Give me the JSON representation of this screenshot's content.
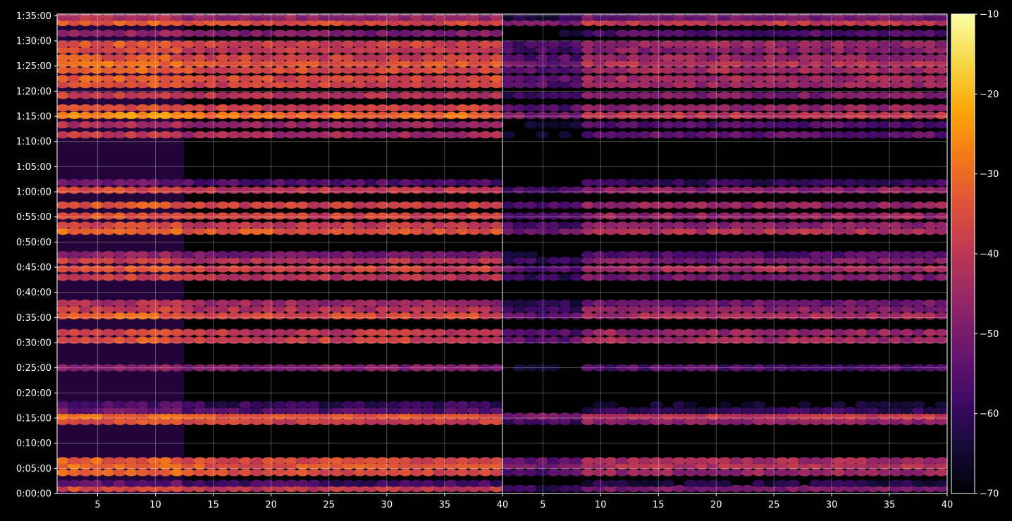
{
  "chart_data": {
    "type": "heatmap",
    "title": "",
    "xlabel": "",
    "ylabel": "",
    "grid": true,
    "panels": [
      {
        "name": "",
        "xlim": [
          1.5,
          40
        ],
        "xticks": [
          5,
          10,
          15,
          20,
          25,
          30,
          35,
          40
        ]
      },
      {
        "name": "",
        "xlim": [
          1.5,
          40
        ],
        "xticks": [
          5,
          10,
          15,
          20,
          25,
          30,
          35,
          40
        ]
      }
    ],
    "ylim_seconds": [
      0,
      5720
    ],
    "yticks": [
      {
        "label": "0:00:00",
        "seconds": 0
      },
      {
        "label": "0:05:00",
        "seconds": 300
      },
      {
        "label": "0:10:00",
        "seconds": 600
      },
      {
        "label": "0:15:00",
        "seconds": 900
      },
      {
        "label": "0:20:00",
        "seconds": 1200
      },
      {
        "label": "0:25:00",
        "seconds": 1500
      },
      {
        "label": "0:30:00",
        "seconds": 1800
      },
      {
        "label": "0:35:00",
        "seconds": 2100
      },
      {
        "label": "0:40:00",
        "seconds": 2400
      },
      {
        "label": "0:45:00",
        "seconds": 2700
      },
      {
        "label": "0:50:00",
        "seconds": 3000
      },
      {
        "label": "0:55:00",
        "seconds": 3300
      },
      {
        "label": "1:00:00",
        "seconds": 3600
      },
      {
        "label": "1:05:00",
        "seconds": 3900
      },
      {
        "label": "1:10:00",
        "seconds": 4200
      },
      {
        "label": "1:15:00",
        "seconds": 4500
      },
      {
        "label": "1:20:00",
        "seconds": 4800
      },
      {
        "label": "1:25:00",
        "seconds": 5100
      },
      {
        "label": "1:30:00",
        "seconds": 5400
      },
      {
        "label": "1:35:00",
        "seconds": 5700
      }
    ],
    "colorbar": {
      "colormap": "inferno",
      "range": [
        -70,
        -10
      ],
      "ticks": [
        "−70",
        "−60",
        "−50",
        "−40",
        "−30",
        "−20",
        "−10"
      ],
      "tick_values": [
        -70,
        -60,
        -50,
        -40,
        -30,
        -20,
        -10
      ]
    },
    "bands": [
      {
        "seconds": 60,
        "left": -40,
        "right": -50
      },
      {
        "seconds": 120,
        "left": -58,
        "right": -63
      },
      {
        "seconds": 250,
        "left": -36,
        "right": -46
      },
      {
        "seconds": 330,
        "left": -34,
        "right": -42
      },
      {
        "seconds": 390,
        "left": -36,
        "right": -44
      },
      {
        "seconds": 860,
        "left": -38,
        "right": -48
      },
      {
        "seconds": 920,
        "left": -34,
        "right": -40
      },
      {
        "seconds": 990,
        "left": -56,
        "right": -60
      },
      {
        "seconds": 1060,
        "left": -60,
        "right": -66
      },
      {
        "seconds": 1500,
        "left": -50,
        "right": -56
      },
      {
        "seconds": 1830,
        "left": -38,
        "right": -44
      },
      {
        "seconds": 1920,
        "left": -40,
        "right": -46
      },
      {
        "seconds": 2120,
        "left": -36,
        "right": -44
      },
      {
        "seconds": 2200,
        "left": -42,
        "right": -48
      },
      {
        "seconds": 2270,
        "left": -46,
        "right": -52
      },
      {
        "seconds": 2580,
        "left": -42,
        "right": -50
      },
      {
        "seconds": 2680,
        "left": -38,
        "right": -44
      },
      {
        "seconds": 2780,
        "left": -42,
        "right": -50
      },
      {
        "seconds": 2850,
        "left": -50,
        "right": -56
      },
      {
        "seconds": 3130,
        "left": -34,
        "right": -42
      },
      {
        "seconds": 3200,
        "left": -40,
        "right": -48
      },
      {
        "seconds": 3310,
        "left": -38,
        "right": -46
      },
      {
        "seconds": 3440,
        "left": -38,
        "right": -46
      },
      {
        "seconds": 3620,
        "left": -40,
        "right": -48
      },
      {
        "seconds": 3710,
        "left": -56,
        "right": -60
      },
      {
        "seconds": 4280,
        "left": -44,
        "right": -54
      },
      {
        "seconds": 4400,
        "left": -46,
        "right": -56
      },
      {
        "seconds": 4510,
        "left": -30,
        "right": -40
      },
      {
        "seconds": 4600,
        "left": -38,
        "right": -46
      },
      {
        "seconds": 4750,
        "left": -42,
        "right": -50
      },
      {
        "seconds": 4880,
        "left": -38,
        "right": -46
      },
      {
        "seconds": 4950,
        "left": -36,
        "right": -44
      },
      {
        "seconds": 5050,
        "left": -36,
        "right": -44
      },
      {
        "seconds": 5130,
        "left": -34,
        "right": -42
      },
      {
        "seconds": 5200,
        "left": -38,
        "right": -46
      },
      {
        "seconds": 5290,
        "left": -40,
        "right": -48
      },
      {
        "seconds": 5360,
        "left": -38,
        "right": -46
      },
      {
        "seconds": 5490,
        "left": -50,
        "right": -56
      },
      {
        "seconds": 5620,
        "left": -36,
        "right": -40
      },
      {
        "seconds": 5680,
        "left": -46,
        "right": -52
      }
    ]
  }
}
